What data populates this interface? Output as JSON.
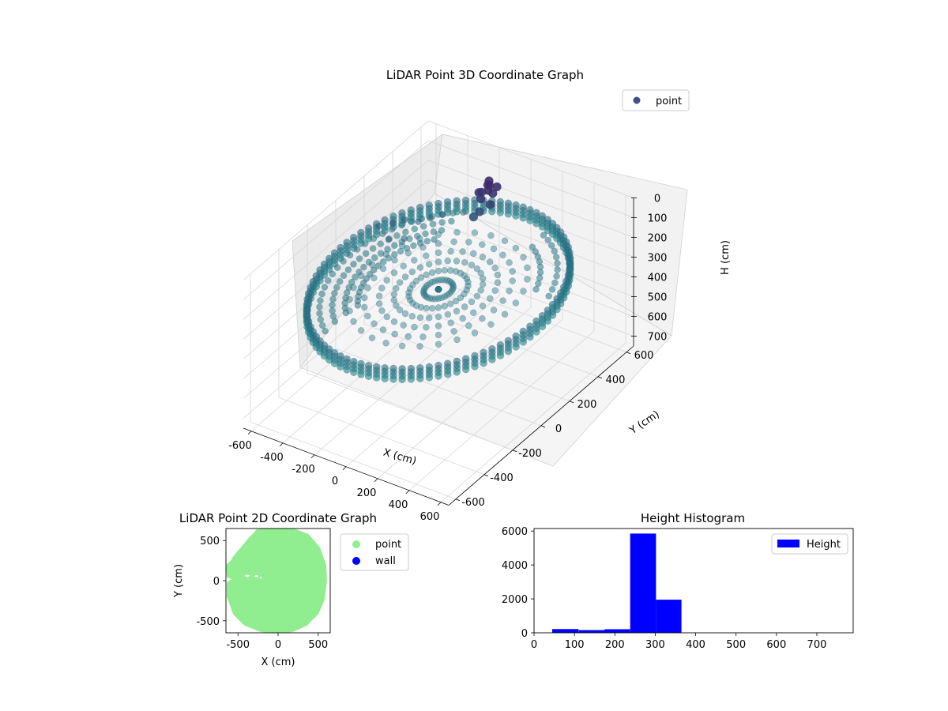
{
  "chart_data": [
    {
      "type": "scatter3d",
      "title": "LiDAR Point 3D Coordinate Graph",
      "xlabel": "X (cm)",
      "ylabel": "Y (cm)",
      "zlabel": "H (cm)",
      "xlim": [
        -650,
        650
      ],
      "ylim": [
        -650,
        650
      ],
      "zlim": [
        750,
        0
      ],
      "xticks": [
        -600,
        -400,
        -200,
        0,
        200,
        400,
        600
      ],
      "yticks": [
        -600,
        -400,
        -200,
        0,
        200,
        400,
        600
      ],
      "zticks": [
        0,
        100,
        200,
        300,
        400,
        500,
        600,
        700
      ],
      "legend": {
        "entries": [
          "point"
        ],
        "placement": "top-right"
      },
      "grid": true,
      "colormap": "viridis",
      "series": [
        {
          "name": "point",
          "color": "#3b528b",
          "ring": {
            "radius": 620,
            "height": 250,
            "angle_step_deg": 4
          },
          "scan_arcs": [
            {
              "radius": 560,
              "height": 250,
              "start_deg": 120,
              "end_deg": 240
            },
            {
              "radius": 500,
              "height": 250,
              "start_deg": 125,
              "end_deg": 235
            },
            {
              "radius": 440,
              "height": 250,
              "start_deg": 130,
              "end_deg": 230
            },
            {
              "radius": 380,
              "height": 250,
              "start_deg": 135,
              "end_deg": 225
            },
            {
              "radius": 560,
              "height": 250,
              "start_deg": 20,
              "end_deg": 70
            },
            {
              "radius": 480,
              "height": 250,
              "start_deg": 25,
              "end_deg": 65
            }
          ],
          "object_points": [
            [
              -120,
              480,
              60
            ],
            [
              -100,
              470,
              50
            ],
            [
              -80,
              500,
              70
            ],
            [
              -140,
              440,
              80
            ],
            [
              -110,
              420,
              90
            ],
            [
              -90,
              450,
              60
            ],
            [
              -130,
              500,
              55
            ],
            [
              -70,
              460,
              75
            ],
            [
              -150,
              470,
              100
            ],
            [
              -60,
              430,
              110
            ],
            [
              -100,
              400,
              140
            ],
            [
              -120,
              380,
              160
            ]
          ],
          "stray_points": [
            [
              -520,
              160,
              190
            ],
            [
              -470,
              200,
              185
            ],
            [
              -430,
              240,
              180
            ],
            [
              -380,
              280,
              200
            ],
            [
              -340,
              320,
              195
            ],
            [
              -300,
              360,
              190
            ],
            [
              -420,
              120,
              200
            ],
            [
              -360,
              160,
              205
            ]
          ]
        }
      ]
    },
    {
      "type": "scatter",
      "title": "LiDAR Point 2D Coordinate Graph",
      "xlabel": "X (cm)",
      "ylabel": "Y (cm)",
      "xlim": [
        -650,
        650
      ],
      "ylim": [
        -650,
        650
      ],
      "xticks": [
        -500,
        0,
        500
      ],
      "yticks": [
        -500,
        0,
        500
      ],
      "legend": {
        "entries": [
          "point",
          "wall"
        ],
        "placement": "outside-right"
      },
      "series": [
        {
          "name": "point",
          "color": "#90ee90",
          "outline": [
            [
              -270,
              640
            ],
            [
              0,
              670
            ],
            [
              200,
              650
            ],
            [
              380,
              580
            ],
            [
              520,
              420
            ],
            [
              600,
              200
            ],
            [
              610,
              0
            ],
            [
              580,
              -240
            ],
            [
              500,
              -420
            ],
            [
              360,
              -560
            ],
            [
              180,
              -640
            ],
            [
              0,
              -660
            ],
            [
              -220,
              -640
            ],
            [
              -420,
              -560
            ],
            [
              -560,
              -420
            ],
            [
              -640,
              -200
            ],
            [
              -640,
              -20
            ],
            [
              -580,
              20
            ],
            [
              -640,
              40
            ],
            [
              -650,
              200
            ],
            [
              -590,
              250
            ],
            [
              -560,
              300
            ],
            [
              -530,
              340
            ],
            [
              -460,
              420
            ],
            [
              -380,
              520
            ],
            [
              -300,
              600
            ]
          ],
          "holes": [
            [
              [
                -420,
                60
              ],
              [
                -380,
                40
              ],
              [
                -350,
                65
              ],
              [
                -390,
                75
              ]
            ],
            [
              [
                -300,
                50
              ],
              [
                -260,
                40
              ],
              [
                -240,
                60
              ],
              [
                -280,
                70
              ]
            ],
            [
              [
                -230,
                40
              ],
              [
                -210,
                20
              ],
              [
                -200,
                50
              ]
            ]
          ]
        },
        {
          "name": "wall",
          "color": "#0000ff"
        }
      ]
    },
    {
      "type": "bar",
      "title": "Height Histogram",
      "xlim": [
        0,
        790
      ],
      "ylim": [
        0,
        6150
      ],
      "xticks": [
        0,
        100,
        200,
        300,
        400,
        500,
        600,
        700
      ],
      "yticks": [
        0,
        2000,
        4000,
        6000
      ],
      "legend": {
        "entries": [
          "Height"
        ],
        "placement": "top-right"
      },
      "series": [
        {
          "name": "Height",
          "color": "#0000ff",
          "bins": [
            [
              45,
              110,
              220
            ],
            [
              110,
              175,
              160
            ],
            [
              175,
              238,
              210
            ],
            [
              238,
              302,
              5850
            ],
            [
              302,
              365,
              1950
            ]
          ]
        }
      ]
    }
  ]
}
